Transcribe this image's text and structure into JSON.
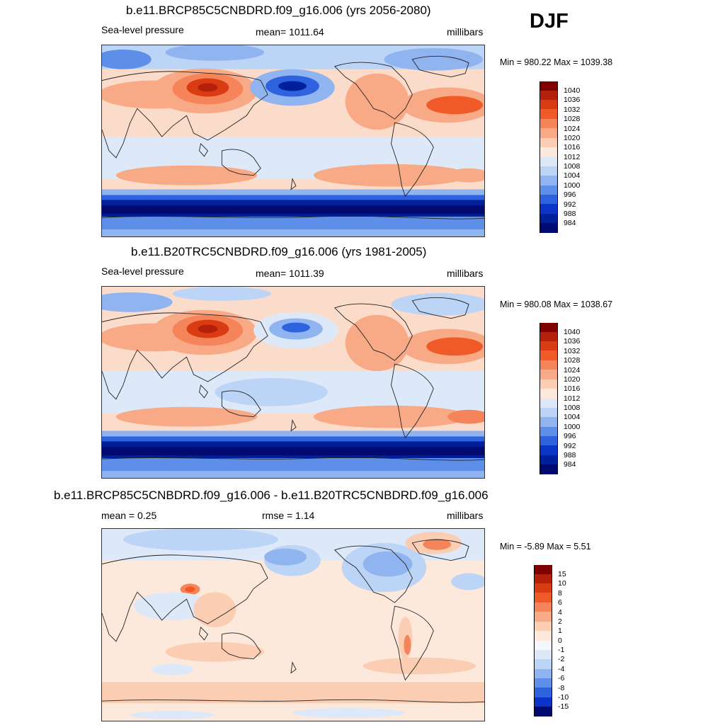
{
  "season": "DJF",
  "panels": [
    {
      "title": "b.e11.BRCP85C5CNBDRD.f09_g16.006 (yrs 2056-2080)",
      "left_label": "Sea-level pressure",
      "center_label": "mean= 1011.64",
      "right_label": "millibars",
      "minmax": "Min = 980.22 Max = 1039.38"
    },
    {
      "title": "b.e11.B20TRC5CNBDRD.f09_g16.006 (yrs 1981-2005)",
      "left_label": "Sea-level pressure",
      "center_label": "mean= 1011.39",
      "right_label": "millibars",
      "minmax": "Min = 980.08 Max = 1038.67"
    },
    {
      "title": "b.e11.BRCP85C5CNBDRD.f09_g16.006 - b.e11.B20TRC5CNBDRD.f09_g16.006",
      "left_label": "mean =   0.25",
      "center_label": "rmse =   1.14",
      "right_label": "millibars",
      "minmax": "Min =  -5.89 Max =   5.51"
    }
  ],
  "colorbar_slp": {
    "labels": [
      "1040",
      "1036",
      "1032",
      "1028",
      "1024",
      "1020",
      "1016",
      "1012",
      "1008",
      "1004",
      "1000",
      "996",
      "992",
      "988",
      "984"
    ],
    "colors": [
      "#800000",
      "#b3200b",
      "#d93b12",
      "#f05a28",
      "#f5845a",
      "#f8aa86",
      "#fbcdb3",
      "#fde9dc",
      "#dde9f8",
      "#bcd4f5",
      "#8fb4f0",
      "#5e8fe8",
      "#2e62de",
      "#0b35c8",
      "#001f9a",
      "#000a70"
    ]
  },
  "colorbar_diff": {
    "labels": [
      "15",
      "10",
      "8",
      "6",
      "4",
      "2",
      "1",
      "0",
      "-1",
      "-2",
      "-4",
      "-6",
      "-8",
      "-10",
      "-15"
    ],
    "colors": [
      "#800000",
      "#b3200b",
      "#d93b12",
      "#f05a28",
      "#f5845a",
      "#f8aa86",
      "#fbcdb3",
      "#fde9dc",
      "#f4f8fe",
      "#dde9f8",
      "#bcd4f5",
      "#8fb4f0",
      "#5e8fe8",
      "#2e62de",
      "#0b35c8",
      "#000a70"
    ]
  }
}
